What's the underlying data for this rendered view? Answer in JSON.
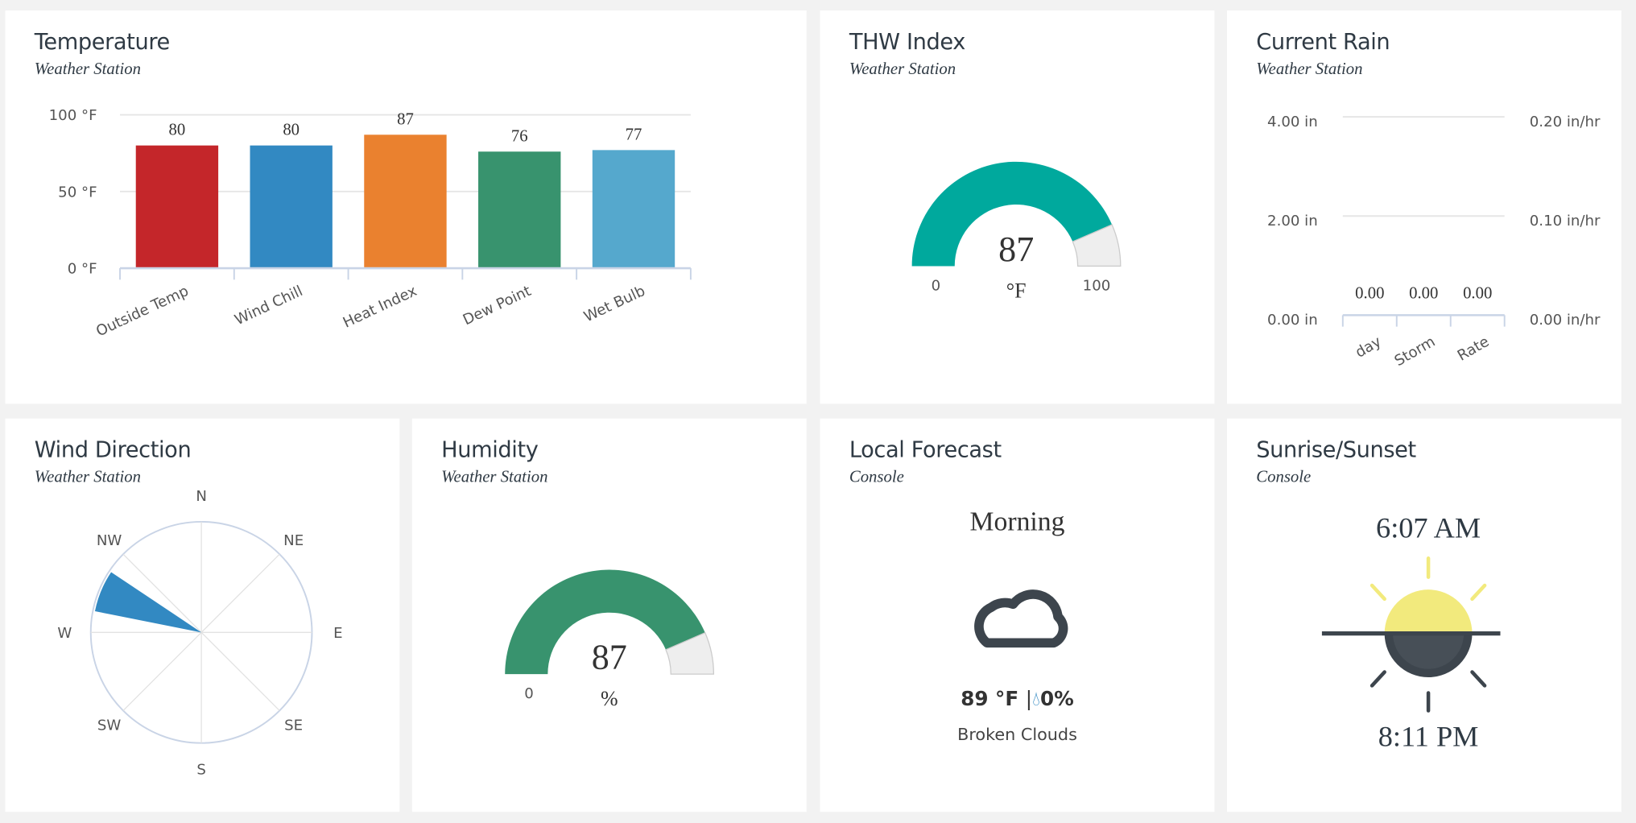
{
  "colors": {
    "background": "#f2f2f2",
    "card": "#ffffff",
    "text": "#2f3a44",
    "grid": "#e6e6e6",
    "axis": "#c9d4e6"
  },
  "temperature": {
    "title": "Temperature",
    "source": "Weather Station",
    "chart_data": {
      "type": "bar",
      "categories": [
        "Outside Temp",
        "Wind Chill",
        "Heat Index",
        "Dew Point",
        "Wet Bulb"
      ],
      "values": [
        80,
        80,
        87,
        76,
        77
      ],
      "value_labels": [
        "80",
        "80",
        "87",
        "76",
        "77"
      ],
      "colors": [
        "#c4262a",
        "#3289c2",
        "#ea812f",
        "#38936e",
        "#55a8cd"
      ],
      "ylim": [
        0,
        100
      ],
      "yticks": [
        "0 °F",
        "50 °F",
        "100 °F"
      ],
      "ytick_values": [
        0,
        50,
        100
      ],
      "grid": true
    }
  },
  "thw": {
    "title": "THW Index",
    "source": "Weather Station",
    "gauge": {
      "value": 87,
      "min": 0,
      "max": 100,
      "value_label": "87",
      "unit": "°F",
      "min_label": "0",
      "max_label": "100",
      "color": "#00a99d",
      "track": "#eeeeee"
    }
  },
  "rain": {
    "title": "Current Rain",
    "source": "Weather Station",
    "chart_data": {
      "type": "bar",
      "categories": [
        "day",
        "Storm",
        "Rate"
      ],
      "values": [
        0.0,
        0.0,
        0.0
      ],
      "value_labels": [
        "0.00",
        "0.00",
        "0.00"
      ],
      "ylim_left": [
        0,
        4
      ],
      "ylim_right": [
        0,
        0.2
      ],
      "yticks_left": [
        "0.00 in",
        "2.00 in",
        "4.00 in"
      ],
      "yticks_right": [
        "0.00 in/hr",
        "0.10 in/hr",
        "0.20 in/hr"
      ],
      "grid": true
    }
  },
  "wind": {
    "title": "Wind Direction",
    "source": "Weather Station",
    "direction_deg": 292.5,
    "color": "#3289c2",
    "compass": [
      "N",
      "NE",
      "E",
      "SE",
      "S",
      "SW",
      "W",
      "NW"
    ]
  },
  "humidity": {
    "title": "Humidity",
    "source": "Weather Station",
    "gauge": {
      "value": 87,
      "min": 0,
      "max": 100,
      "value_label": "87",
      "unit": "%",
      "min_label": "0",
      "color": "#38936e",
      "track": "#eeeeee"
    }
  },
  "forecast": {
    "title": "Local Forecast",
    "source": "Console",
    "period": "Morning",
    "icon": "cloud-icon",
    "temp": "89 °F",
    "separator": "|",
    "precip": "0%",
    "condition": "Broken Clouds",
    "precip_color": "#3289c2"
  },
  "sun": {
    "title": "Sunrise/Sunset",
    "source": "Console",
    "sunrise": "6:07 AM",
    "sunset": "8:11 PM",
    "icon": "sunrise-sunset-icon",
    "sun_color": "#f2ea7d",
    "dark_color": "#3d454d"
  }
}
